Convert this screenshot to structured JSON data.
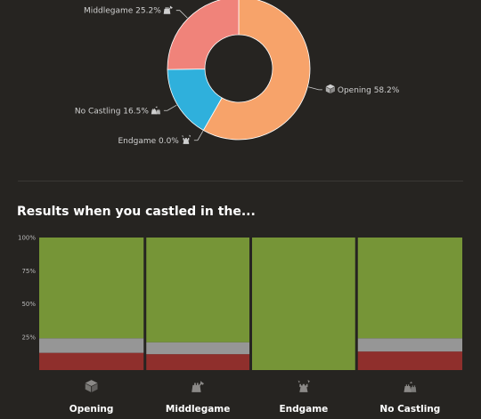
{
  "colors": {
    "opening": "#f7a36a",
    "middlegame": "#f0837a",
    "no_castling": "#2fb0dc",
    "endgame": "#9b9ba2",
    "win": "#769537",
    "draw": "#969696",
    "loss": "#8f2f2c",
    "background": "#262421"
  },
  "section": {
    "title": "Results when you castled in the..."
  },
  "chart_data": [
    {
      "type": "pie",
      "donut": true,
      "title": "",
      "slices": [
        {
          "name": "Opening",
          "value": 58.2,
          "label": "Opening 58.2%",
          "icon": "opening-icon"
        },
        {
          "name": "Endgame",
          "value": 0.0,
          "label": "Endgame 0.0%",
          "icon": "endgame-icon"
        },
        {
          "name": "No Castling",
          "value": 16.5,
          "label": "No Castling 16.5%",
          "icon": "no-castling-icon"
        },
        {
          "name": "Middlegame",
          "value": 25.2,
          "label": "Middlegame 25.2%",
          "icon": "middlegame-icon"
        }
      ]
    },
    {
      "type": "bar",
      "stacked": true,
      "title": "Results when you castled in the...",
      "categories": [
        "Opening",
        "Middlegame",
        "Endgame",
        "No Castling"
      ],
      "category_icons": [
        "opening-icon",
        "middlegame-icon",
        "endgame-icon",
        "no-castling-icon"
      ],
      "series": [
        {
          "key": "loss",
          "values": [
            13,
            12,
            0,
            14
          ]
        },
        {
          "key": "draw",
          "values": [
            11,
            9,
            0,
            10
          ]
        },
        {
          "key": "win",
          "values": [
            76,
            79,
            100,
            76
          ]
        }
      ],
      "ylim": [
        0,
        100
      ],
      "yticks": [
        {
          "value": 25,
          "label": "25%"
        },
        {
          "value": 50,
          "label": "50%"
        },
        {
          "value": 75,
          "label": "75%"
        },
        {
          "value": 100,
          "label": "100%"
        }
      ]
    }
  ]
}
